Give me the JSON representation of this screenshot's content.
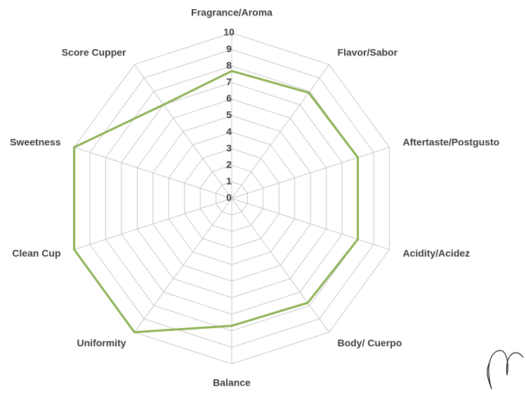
{
  "chart_data": {
    "type": "radar",
    "categories": [
      "Fragrance/Aroma",
      "Flavor/Sabor",
      "Aftertaste/Postgusto",
      "Acidity/Acidez",
      "Body/ Cuerpo",
      "Balance",
      "Uniformity",
      "Clean Cup",
      "Sweetness",
      "Score Cupper"
    ],
    "values": [
      7.7,
      7.9,
      8.0,
      8.0,
      7.8,
      7.7,
      10,
      10,
      10,
      7.0
    ],
    "color": "#8db255",
    "rlim": [
      0,
      10
    ],
    "rticks": [
      0,
      1,
      2,
      3,
      4,
      5,
      6,
      7,
      8,
      9,
      10
    ],
    "grid": true
  }
}
